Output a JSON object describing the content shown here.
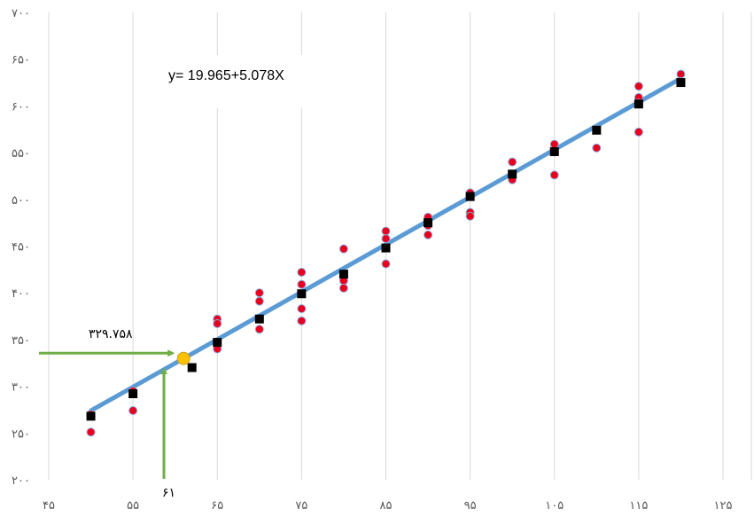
{
  "chart_data": {
    "type": "scatter",
    "xlim": [
      45,
      125
    ],
    "ylim": [
      200,
      700
    ],
    "x_ticks": [
      45,
      55,
      65,
      75,
      85,
      95,
      105,
      115,
      125
    ],
    "y_ticks": [
      200,
      250,
      300,
      350,
      400,
      450,
      500,
      550,
      600,
      650,
      700
    ],
    "x_tick_labels": [
      "۴۵",
      "۵۵",
      "۶۵",
      "۷۵",
      "۸۵",
      "۹۵",
      "۱۰۵",
      "۱۱۵",
      "۱۲۵"
    ],
    "y_tick_labels": [
      "۲۰۰",
      "۲۵۰",
      "۳۰۰",
      "۳۵۰",
      "۴۰۰",
      "۴۵۰",
      "۵۰۰",
      "۵۵۰",
      "۶۰۰",
      "۶۵۰",
      "۷۰۰"
    ],
    "grid": "vertical",
    "series": [
      {
        "marker": "circle",
        "color": "#e8001c",
        "points": [
          [
            50,
            270
          ],
          [
            50,
            251
          ],
          [
            55,
            295
          ],
          [
            55,
            274
          ],
          [
            65,
            372
          ],
          [
            65,
            367
          ],
          [
            65,
            340
          ],
          [
            70,
            400
          ],
          [
            70,
            391
          ],
          [
            70,
            361
          ],
          [
            75,
            422
          ],
          [
            75,
            409
          ],
          [
            75,
            383
          ],
          [
            75,
            370
          ],
          [
            80,
            447
          ],
          [
            80,
            418
          ],
          [
            80,
            413
          ],
          [
            80,
            405
          ],
          [
            85,
            466
          ],
          [
            85,
            458
          ],
          [
            85,
            431
          ],
          [
            90,
            481
          ],
          [
            90,
            472
          ],
          [
            90,
            462
          ],
          [
            95,
            507
          ],
          [
            95,
            486
          ],
          [
            95,
            482
          ],
          [
            100,
            540
          ],
          [
            100,
            527
          ],
          [
            100,
            521
          ],
          [
            105,
            559
          ],
          [
            105,
            526
          ],
          [
            110,
            575
          ],
          [
            110,
            555
          ],
          [
            115,
            621
          ],
          [
            115,
            609
          ],
          [
            115,
            603
          ],
          [
            115,
            572
          ],
          [
            120,
            634
          ],
          [
            120,
            626
          ]
        ]
      },
      {
        "marker": "square",
        "color": "#000000",
        "points": [
          [
            50,
            268
          ],
          [
            55,
            292
          ],
          [
            62,
            320
          ],
          [
            65,
            347
          ],
          [
            70,
            372
          ],
          [
            75,
            399
          ],
          [
            80,
            420
          ],
          [
            85,
            448
          ],
          [
            90,
            475
          ],
          [
            95,
            503
          ],
          [
            100,
            527
          ],
          [
            105,
            551
          ],
          [
            110,
            574
          ],
          [
            115,
            602
          ],
          [
            120,
            625
          ]
        ]
      }
    ],
    "trendline": {
      "x": [
        50,
        120
      ],
      "y": [
        273.9,
        629.4
      ],
      "color": "#5b9bd5"
    },
    "equation_label": "y= 19.965+5.078X",
    "highlight_point": {
      "x": 61,
      "y": 329.758,
      "color": "#ffc000"
    },
    "annotations": {
      "x_value": "۶۱",
      "y_value": "۳۲۹.۷۵۸"
    },
    "arrow_color": "#70ad47"
  }
}
